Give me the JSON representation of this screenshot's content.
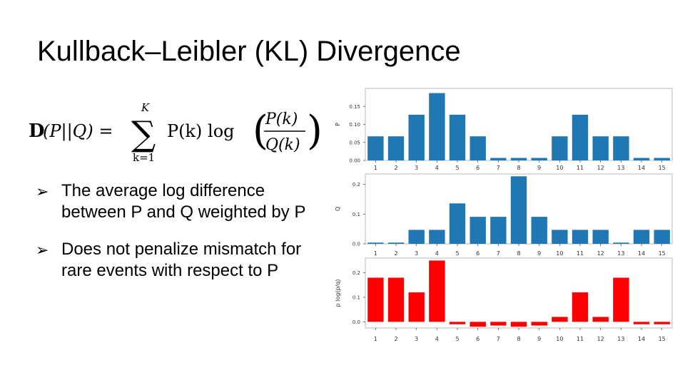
{
  "slide": {
    "title": "Kullback–Leibler (KL) Divergence",
    "formula": {
      "bold_D": "D",
      "args": "(P||Q) =",
      "sum_upper": "K",
      "sum_lower": "k=1",
      "pk": "P(k) log",
      "num": "P(k)",
      "den": "Q(k)"
    },
    "bullets": [
      {
        "marker": "➢",
        "text": "The average log difference between P and Q weighted by P"
      },
      {
        "marker": "➢",
        "text": "Does not penalize mismatch for rare events with respect to P"
      }
    ]
  },
  "chart_data": [
    {
      "type": "bar",
      "categories": [
        "1",
        "2",
        "3",
        "4",
        "5",
        "6",
        "7",
        "8",
        "9",
        "10",
        "11",
        "12",
        "13",
        "14",
        "15"
      ],
      "values": [
        0.067,
        0.067,
        0.127,
        0.187,
        0.127,
        0.067,
        0.007,
        0.007,
        0.007,
        0.067,
        0.127,
        0.067,
        0.067,
        0.007,
        0.007
      ],
      "ylabel": "P",
      "ylim": [
        0,
        0.2
      ],
      "yticks": [
        "0.00",
        "0.05",
        "0.10",
        "0.15"
      ],
      "ytick_values": [
        0,
        0.05,
        0.1,
        0.15
      ],
      "color": "#1f77b4",
      "grid": false
    },
    {
      "type": "bar",
      "categories": [
        "1",
        "2",
        "3",
        "4",
        "5",
        "6",
        "7",
        "8",
        "9",
        "10",
        "11",
        "12",
        "13",
        "14",
        "15"
      ],
      "values": [
        0.004,
        0.004,
        0.047,
        0.047,
        0.136,
        0.091,
        0.091,
        0.227,
        0.091,
        0.047,
        0.047,
        0.047,
        0.004,
        0.047,
        0.047
      ],
      "ylabel": "Q",
      "ylim": [
        0,
        0.235
      ],
      "yticks": [
        "0.0",
        "0.1",
        "0.2"
      ],
      "ytick_values": [
        0,
        0.1,
        0.2
      ],
      "color": "#1f77b4",
      "grid": false
    },
    {
      "type": "bar",
      "categories": [
        "1",
        "2",
        "3",
        "4",
        "5",
        "6",
        "7",
        "8",
        "9",
        "10",
        "11",
        "12",
        "13",
        "14",
        "15"
      ],
      "values": [
        0.18,
        0.18,
        0.12,
        0.25,
        -0.01,
        -0.02,
        -0.015,
        -0.02,
        -0.015,
        0.02,
        0.12,
        0.02,
        0.18,
        -0.01,
        -0.01
      ],
      "ylabel": "p log(p/q)",
      "ylim": [
        -0.025,
        0.26
      ],
      "yticks": [
        "0.0",
        "0.1",
        "0.2"
      ],
      "ytick_values": [
        0,
        0.1,
        0.2
      ],
      "color": "#ff0000",
      "grid": false
    }
  ]
}
